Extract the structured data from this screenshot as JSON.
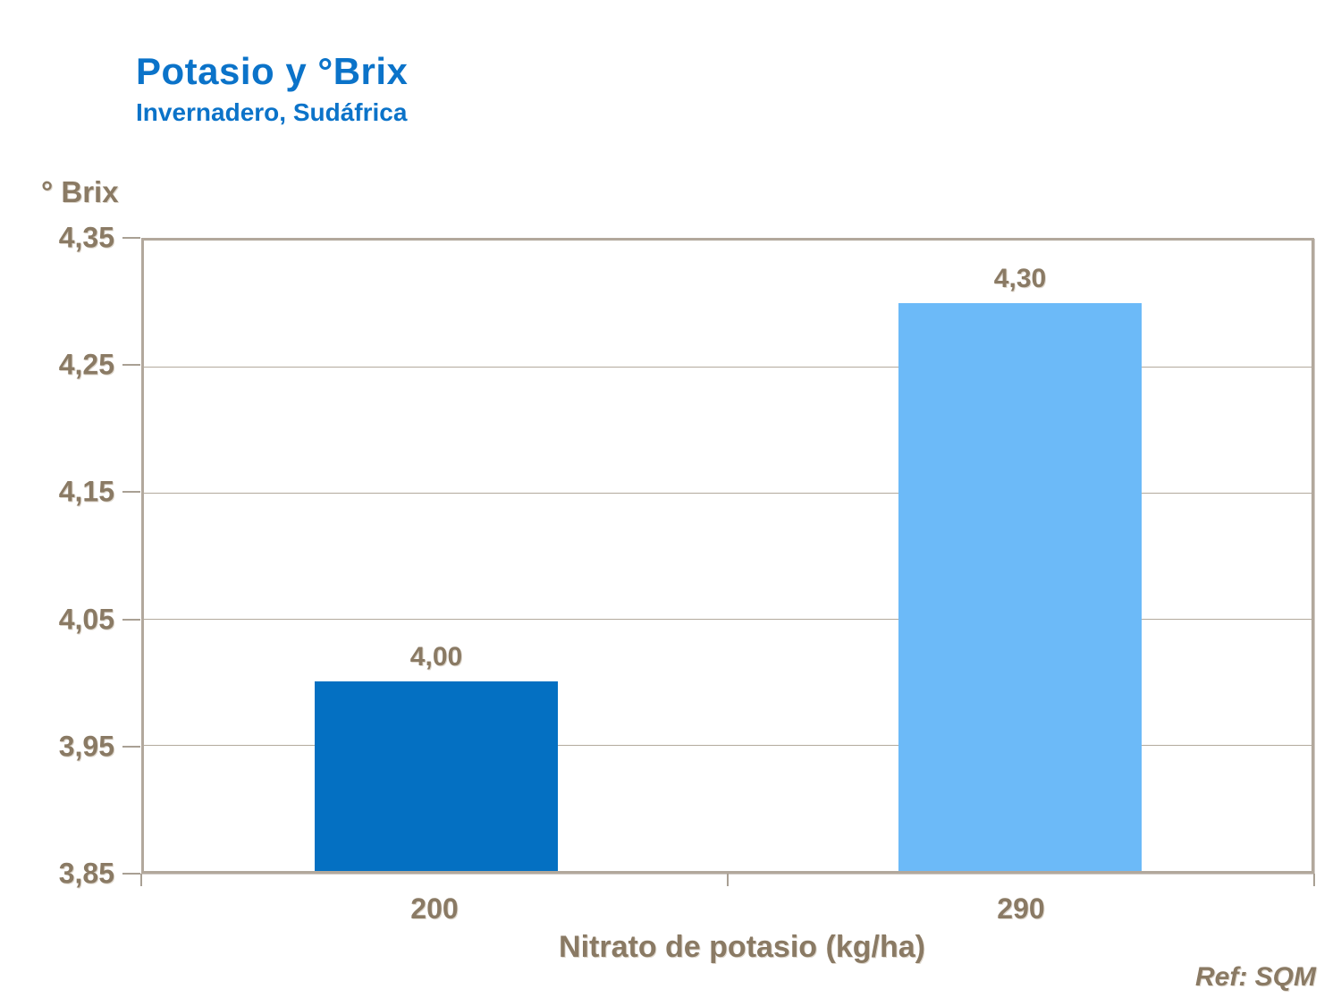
{
  "chart_data": {
    "type": "bar",
    "title": "Potasio y °Brix",
    "subtitle": "Invernadero, Sudáfrica",
    "ylabel": "° Brix",
    "xlabel": "Nitrato de potasio (kg/ha)",
    "categories": [
      "200",
      "290"
    ],
    "values": [
      4.0,
      4.3
    ],
    "value_labels": [
      "4,00",
      "4,30"
    ],
    "bar_colors": [
      "#0470C2",
      "#6CBAF8"
    ],
    "ylim": [
      3.85,
      4.35
    ],
    "ytick_values": [
      4.35,
      4.25,
      4.15,
      4.05,
      3.95,
      3.85
    ],
    "ytick_labels": [
      "4,35",
      "4,25",
      "4,15",
      "4,05",
      "3,95",
      "3,85"
    ],
    "grid": true,
    "legend_position": "none",
    "reference": "Ref: SQM",
    "colors": {
      "title_text": "#0B73C9",
      "axis_text": "#8A7A64",
      "frame": "#B2A89C",
      "gridline": "#B3AA9D"
    }
  }
}
